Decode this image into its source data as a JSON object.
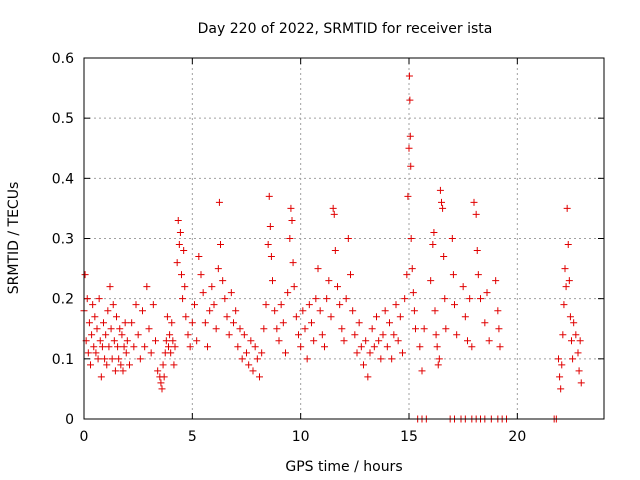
{
  "chart_data": {
    "type": "scatter",
    "title": "Day 220 of 2022, SRMTID for receiver ista",
    "xlabel": "GPS time / hours",
    "ylabel": "SRMTID / TECUs",
    "xlim": [
      0,
      24
    ],
    "ylim": [
      0,
      0.6
    ],
    "xticks": [
      0,
      5,
      10,
      15,
      20
    ],
    "xtick_labels": [
      "0",
      "5",
      "10",
      "15",
      "20"
    ],
    "yticks": [
      0,
      0.1,
      0.2,
      0.3,
      0.4,
      0.5,
      0.6
    ],
    "ytick_labels": [
      "0",
      "0.1",
      "0.2",
      "0.3",
      "0.4",
      "0.5",
      "0.6"
    ],
    "grid": true,
    "marker": "+",
    "color": "#e00000",
    "series": [
      {
        "name": "SRMTID",
        "points": [
          [
            0.0,
            0.18
          ],
          [
            0.05,
            0.24
          ],
          [
            0.1,
            0.13
          ],
          [
            0.15,
            0.2
          ],
          [
            0.2,
            0.11
          ],
          [
            0.25,
            0.16
          ],
          [
            0.3,
            0.09
          ],
          [
            0.35,
            0.14
          ],
          [
            0.4,
            0.19
          ],
          [
            0.45,
            0.12
          ],
          [
            0.5,
            0.17
          ],
          [
            0.55,
            0.11
          ],
          [
            0.6,
            0.15
          ],
          [
            0.65,
            0.1
          ],
          [
            0.7,
            0.2
          ],
          [
            0.75,
            0.13
          ],
          [
            0.8,
            0.07
          ],
          [
            0.85,
            0.12
          ],
          [
            0.9,
            0.16
          ],
          [
            0.95,
            0.1
          ],
          [
            1.0,
            0.14
          ],
          [
            1.05,
            0.09
          ],
          [
            1.1,
            0.18
          ],
          [
            1.15,
            0.12
          ],
          [
            1.2,
            0.22
          ],
          [
            1.25,
            0.15
          ],
          [
            1.3,
            0.1
          ],
          [
            1.35,
            0.19
          ],
          [
            1.4,
            0.13
          ],
          [
            1.45,
            0.08
          ],
          [
            1.5,
            0.17
          ],
          [
            1.55,
            0.12
          ],
          [
            1.6,
            0.1
          ],
          [
            1.65,
            0.15
          ],
          [
            1.7,
            0.09
          ],
          [
            1.75,
            0.14
          ],
          [
            1.8,
            0.08
          ],
          [
            1.85,
            0.12
          ],
          [
            1.9,
            0.16
          ],
          [
            1.95,
            0.11
          ],
          [
            2.0,
            0.13
          ],
          [
            2.1,
            0.09
          ],
          [
            2.2,
            0.16
          ],
          [
            2.3,
            0.12
          ],
          [
            2.4,
            0.19
          ],
          [
            2.5,
            0.14
          ],
          [
            2.6,
            0.1
          ],
          [
            2.7,
            0.18
          ],
          [
            2.8,
            0.12
          ],
          [
            2.9,
            0.22
          ],
          [
            3.0,
            0.15
          ],
          [
            3.1,
            0.11
          ],
          [
            3.2,
            0.19
          ],
          [
            3.3,
            0.13
          ],
          [
            3.4,
            0.08
          ],
          [
            3.5,
            0.07
          ],
          [
            3.55,
            0.06
          ],
          [
            3.6,
            0.05
          ],
          [
            3.65,
            0.09
          ],
          [
            3.7,
            0.07
          ],
          [
            3.75,
            0.11
          ],
          [
            3.8,
            0.13
          ],
          [
            3.85,
            0.17
          ],
          [
            3.9,
            0.12
          ],
          [
            3.95,
            0.14
          ],
          [
            4.0,
            0.11
          ],
          [
            4.05,
            0.16
          ],
          [
            4.1,
            0.13
          ],
          [
            4.15,
            0.09
          ],
          [
            4.2,
            0.12
          ],
          [
            4.3,
            0.26
          ],
          [
            4.35,
            0.33
          ],
          [
            4.4,
            0.29
          ],
          [
            4.45,
            0.31
          ],
          [
            4.5,
            0.24
          ],
          [
            4.55,
            0.2
          ],
          [
            4.6,
            0.28
          ],
          [
            4.65,
            0.22
          ],
          [
            4.7,
            0.17
          ],
          [
            4.8,
            0.14
          ],
          [
            4.9,
            0.12
          ],
          [
            5.0,
            0.16
          ],
          [
            5.1,
            0.19
          ],
          [
            5.2,
            0.13
          ],
          [
            5.3,
            0.27
          ],
          [
            5.4,
            0.24
          ],
          [
            5.5,
            0.21
          ],
          [
            5.6,
            0.16
          ],
          [
            5.7,
            0.12
          ],
          [
            5.8,
            0.18
          ],
          [
            5.9,
            0.22
          ],
          [
            6.0,
            0.19
          ],
          [
            6.1,
            0.15
          ],
          [
            6.2,
            0.25
          ],
          [
            6.25,
            0.36
          ],
          [
            6.3,
            0.29
          ],
          [
            6.4,
            0.23
          ],
          [
            6.5,
            0.2
          ],
          [
            6.6,
            0.17
          ],
          [
            6.7,
            0.14
          ],
          [
            6.8,
            0.21
          ],
          [
            6.9,
            0.16
          ],
          [
            7.0,
            0.18
          ],
          [
            7.1,
            0.12
          ],
          [
            7.2,
            0.15
          ],
          [
            7.3,
            0.1
          ],
          [
            7.4,
            0.14
          ],
          [
            7.5,
            0.11
          ],
          [
            7.6,
            0.09
          ],
          [
            7.7,
            0.13
          ],
          [
            7.8,
            0.08
          ],
          [
            7.9,
            0.12
          ],
          [
            8.0,
            0.1
          ],
          [
            8.1,
            0.07
          ],
          [
            8.2,
            0.11
          ],
          [
            8.3,
            0.15
          ],
          [
            8.4,
            0.19
          ],
          [
            8.5,
            0.29
          ],
          [
            8.55,
            0.37
          ],
          [
            8.6,
            0.32
          ],
          [
            8.65,
            0.27
          ],
          [
            8.7,
            0.23
          ],
          [
            8.8,
            0.18
          ],
          [
            8.9,
            0.15
          ],
          [
            9.0,
            0.13
          ],
          [
            9.1,
            0.19
          ],
          [
            9.2,
            0.16
          ],
          [
            9.3,
            0.11
          ],
          [
            9.4,
            0.21
          ],
          [
            9.5,
            0.3
          ],
          [
            9.55,
            0.35
          ],
          [
            9.6,
            0.33
          ],
          [
            9.65,
            0.26
          ],
          [
            9.7,
            0.22
          ],
          [
            9.8,
            0.17
          ],
          [
            9.9,
            0.14
          ],
          [
            10.0,
            0.12
          ],
          [
            10.1,
            0.18
          ],
          [
            10.2,
            0.15
          ],
          [
            10.3,
            0.1
          ],
          [
            10.4,
            0.19
          ],
          [
            10.5,
            0.16
          ],
          [
            10.6,
            0.13
          ],
          [
            10.7,
            0.2
          ],
          [
            10.8,
            0.25
          ],
          [
            10.9,
            0.18
          ],
          [
            11.0,
            0.14
          ],
          [
            11.1,
            0.12
          ],
          [
            11.2,
            0.2
          ],
          [
            11.3,
            0.23
          ],
          [
            11.4,
            0.17
          ],
          [
            11.5,
            0.35
          ],
          [
            11.55,
            0.34
          ],
          [
            11.6,
            0.28
          ],
          [
            11.7,
            0.22
          ],
          [
            11.8,
            0.19
          ],
          [
            11.9,
            0.15
          ],
          [
            12.0,
            0.13
          ],
          [
            12.1,
            0.2
          ],
          [
            12.2,
            0.3
          ],
          [
            12.3,
            0.24
          ],
          [
            12.4,
            0.18
          ],
          [
            12.5,
            0.14
          ],
          [
            12.6,
            0.11
          ],
          [
            12.7,
            0.16
          ],
          [
            12.8,
            0.12
          ],
          [
            12.9,
            0.09
          ],
          [
            13.0,
            0.13
          ],
          [
            13.1,
            0.07
          ],
          [
            13.2,
            0.11
          ],
          [
            13.3,
            0.15
          ],
          [
            13.4,
            0.12
          ],
          [
            13.5,
            0.17
          ],
          [
            13.6,
            0.13
          ],
          [
            13.7,
            0.1
          ],
          [
            13.8,
            0.14
          ],
          [
            13.9,
            0.18
          ],
          [
            14.0,
            0.12
          ],
          [
            14.1,
            0.16
          ],
          [
            14.2,
            0.1
          ],
          [
            14.3,
            0.14
          ],
          [
            14.4,
            0.19
          ],
          [
            14.5,
            0.13
          ],
          [
            14.6,
            0.17
          ],
          [
            14.7,
            0.11
          ],
          [
            14.8,
            0.2
          ],
          [
            14.9,
            0.24
          ],
          [
            14.95,
            0.37
          ],
          [
            15.0,
            0.45
          ],
          [
            15.02,
            0.57
          ],
          [
            15.04,
            0.53
          ],
          [
            15.06,
            0.47
          ],
          [
            15.08,
            0.42
          ],
          [
            15.1,
            0.3
          ],
          [
            15.15,
            0.25
          ],
          [
            15.2,
            0.21
          ],
          [
            15.25,
            0.18
          ],
          [
            15.3,
            0.15
          ],
          [
            15.5,
            0.12
          ],
          [
            15.6,
            0.08
          ],
          [
            15.7,
            0.15
          ],
          [
            16.0,
            0.23
          ],
          [
            16.1,
            0.29
          ],
          [
            16.15,
            0.31
          ],
          [
            16.2,
            0.18
          ],
          [
            16.25,
            0.14
          ],
          [
            16.3,
            0.12
          ],
          [
            16.35,
            0.09
          ],
          [
            16.4,
            0.1
          ],
          [
            16.45,
            0.38
          ],
          [
            16.5,
            0.36
          ],
          [
            16.55,
            0.35
          ],
          [
            16.6,
            0.27
          ],
          [
            16.65,
            0.2
          ],
          [
            16.7,
            0.15
          ],
          [
            17.0,
            0.3
          ],
          [
            17.05,
            0.24
          ],
          [
            17.1,
            0.19
          ],
          [
            17.2,
            0.14
          ],
          [
            17.5,
            0.22
          ],
          [
            17.6,
            0.17
          ],
          [
            17.7,
            0.13
          ],
          [
            17.8,
            0.2
          ],
          [
            17.9,
            0.12
          ],
          [
            18.0,
            0.36
          ],
          [
            18.1,
            0.34
          ],
          [
            18.15,
            0.28
          ],
          [
            18.2,
            0.24
          ],
          [
            18.3,
            0.2
          ],
          [
            18.5,
            0.16
          ],
          [
            18.6,
            0.21
          ],
          [
            18.7,
            0.13
          ],
          [
            19.0,
            0.23
          ],
          [
            19.1,
            0.18
          ],
          [
            19.15,
            0.15
          ],
          [
            19.2,
            0.12
          ],
          [
            21.9,
            0.1
          ],
          [
            21.95,
            0.07
          ],
          [
            22.0,
            0.05
          ],
          [
            22.05,
            0.09
          ],
          [
            22.1,
            0.14
          ],
          [
            22.15,
            0.19
          ],
          [
            22.2,
            0.25
          ],
          [
            22.25,
            0.22
          ],
          [
            22.3,
            0.35
          ],
          [
            22.35,
            0.29
          ],
          [
            22.4,
            0.23
          ],
          [
            22.45,
            0.17
          ],
          [
            22.5,
            0.13
          ],
          [
            22.55,
            0.1
          ],
          [
            22.6,
            0.16
          ],
          [
            22.7,
            0.14
          ],
          [
            22.8,
            0.11
          ],
          [
            22.85,
            0.08
          ],
          [
            22.9,
            0.13
          ],
          [
            22.95,
            0.06
          ],
          [
            15.4,
            0.0
          ],
          [
            15.6,
            0.0
          ],
          [
            15.8,
            0.0
          ],
          [
            16.9,
            0.0
          ],
          [
            17.1,
            0.0
          ],
          [
            17.4,
            0.0
          ],
          [
            17.6,
            0.0
          ],
          [
            17.9,
            0.0
          ],
          [
            18.1,
            0.0
          ],
          [
            18.3,
            0.0
          ],
          [
            18.5,
            0.0
          ],
          [
            18.8,
            0.0
          ],
          [
            19.1,
            0.0
          ],
          [
            19.3,
            0.0
          ],
          [
            19.5,
            0.0
          ],
          [
            21.7,
            0.0
          ],
          [
            21.8,
            0.0
          ]
        ]
      }
    ]
  }
}
